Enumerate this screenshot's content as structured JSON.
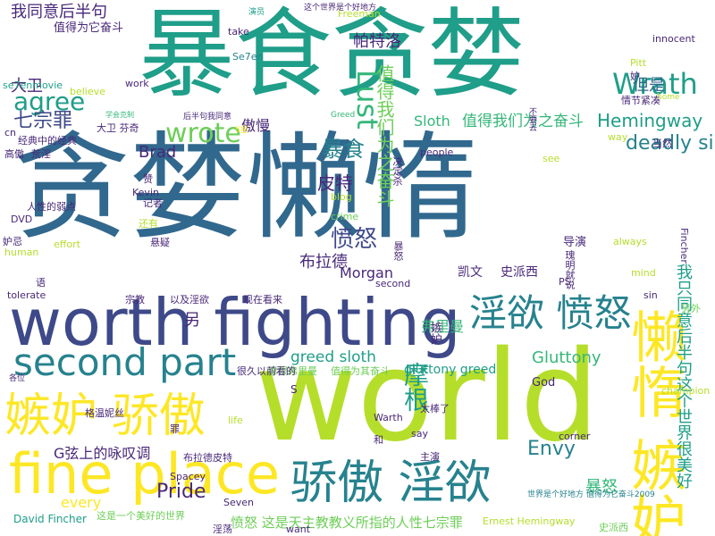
{
  "words": [
    {
      "text": "暴食贪婪"
    },
    {
      "text": "贪婪懒惰"
    },
    {
      "text": "world"
    },
    {
      "text": "worth fighting"
    },
    {
      "text": "fine place"
    },
    {
      "text": "second part"
    },
    {
      "text": "嫉妒 骄傲"
    },
    {
      "text": "骄傲 淫欲"
    },
    {
      "text": "淫欲 愤怒"
    },
    {
      "text": "懒惰 嫉妒"
    },
    {
      "text": "我只同意后半句这个世界很美好"
    },
    {
      "text": "agree"
    },
    {
      "text": "Wrath"
    },
    {
      "text": "Lust"
    },
    {
      "text": "wrote"
    },
    {
      "text": "我同意后半句"
    },
    {
      "text": "值得为它奋斗"
    },
    {
      "text": "帕特洛"
    },
    {
      "text": "七宗罪"
    },
    {
      "text": "大卫"
    },
    {
      "text": "傲慢"
    },
    {
      "text": "暴食"
    },
    {
      "text": "皮特"
    },
    {
      "text": "愤怒"
    },
    {
      "text": "布拉德"
    },
    {
      "text": "Brad"
    },
    {
      "text": "Morgan"
    },
    {
      "text": "Sloth"
    },
    {
      "text": "值得我们为之奋斗"
    },
    {
      "text": "Hemingway"
    },
    {
      "text": "deadly sin"
    },
    {
      "text": "但是"
    },
    {
      "text": "值得我们为之奋斗"
    },
    {
      "text": "greed sloth"
    },
    {
      "text": "弗里曼"
    },
    {
      "text": "Gluttony"
    },
    {
      "text": "gluttony greed"
    },
    {
      "text": "Envy"
    },
    {
      "text": "Pride"
    },
    {
      "text": "G弦上的咏叹调"
    },
    {
      "text": "every"
    },
    {
      "text": "摩根"
    },
    {
      "text": "格温妮丝"
    },
    {
      "text": "暴怒"
    },
    {
      "text": "愤怒 这是天主教教义所指的人性七宗罪"
    },
    {
      "text": "David Fincher"
    },
    {
      "text": "Ernest Hemingway"
    },
    {
      "text": "Seven"
    },
    {
      "text": "Spacey"
    },
    {
      "text": "摩根弗里曼"
    },
    {
      "text": "Kevin"
    },
    {
      "text": "Se7en"
    },
    {
      "text": "Freeman"
    },
    {
      "text": "Pitt"
    },
    {
      "text": "Greed"
    },
    {
      "text": "凯文"
    },
    {
      "text": "史派西"
    },
    {
      "text": "导演"
    },
    {
      "text": "PS"
    },
    {
      "text": "God"
    },
    {
      "text": "champion"
    },
    {
      "text": "corner"
    },
    {
      "text": "say"
    },
    {
      "text": "Warth"
    },
    {
      "text": "太棒了"
    },
    {
      "text": "主演"
    },
    {
      "text": "people"
    },
    {
      "text": "see"
    },
    {
      "text": "always"
    },
    {
      "text": "mind"
    },
    {
      "text": "sin"
    },
    {
      "text": "crime"
    },
    {
      "text": "blog"
    },
    {
      "text": "记者"
    },
    {
      "text": "还有"
    },
    {
      "text": "悬疑"
    },
    {
      "text": "effort"
    },
    {
      "text": "human"
    },
    {
      "text": "tolerate"
    },
    {
      "text": "DVD"
    },
    {
      "text": "妒忌"
    },
    {
      "text": "人性的弱点"
    },
    {
      "text": "经典中的经典"
    },
    {
      "text": "高傲"
    },
    {
      "text": "荒淫"
    },
    {
      "text": "大卫 芬奇"
    },
    {
      "text": "学会克制"
    },
    {
      "text": "5星"
    },
    {
      "text": "后半句我同意"
    },
    {
      "text": "believe"
    },
    {
      "text": "work"
    },
    {
      "text": "se7enmovie"
    },
    {
      "text": "cn"
    },
    {
      "text": "take"
    },
    {
      "text": "演员"
    },
    {
      "text": "这个世界是个好地方"
    },
    {
      "text": "innocent"
    },
    {
      "text": "情节紧凑"
    },
    {
      "text": "home"
    },
    {
      "text": "way"
    },
    {
      "text": "当然"
    },
    {
      "text": "Fincher"
    },
    {
      "text": "另外"
    },
    {
      "text": "现在看来"
    },
    {
      "text": "以及淫欲"
    },
    {
      "text": "宗教"
    },
    {
      "text": "second"
    },
    {
      "text": "很久以前看的"
    },
    {
      "text": "值得为其奋斗"
    },
    {
      "text": "各位"
    },
    {
      "text": "世界是个好地方 值得为它奋斗2009"
    },
    {
      "text": "life"
    },
    {
      "text": "和"
    },
    {
      "text": "罪"
    },
    {
      "text": "布拉德皮特"
    },
    {
      "text": "这是一个美好的世界"
    },
    {
      "text": "淫荡"
    },
    {
      "text": "want"
    },
    {
      "text": "史派西"
    },
    {
      "text": "决定杀"
    },
    {
      "text": "不要去"
    },
    {
      "text": "瑰明就说"
    },
    {
      "text": "妒"
    },
    {
      "text": "另"
    },
    {
      "text": "S"
    },
    {
      "text": "语"
    },
    {
      "text": "赞"
    },
    {
      "text": "嫉妒"
    },
    {
      "text": "暴怒"
    }
  ],
  "colors": {
    "yellow": "#fde725",
    "lime": "#b5de2b",
    "green": "#6ece58",
    "teal_green": "#35b779",
    "teal": "#1f9e89",
    "cyan": "#26828e",
    "blue": "#31688e",
    "indigo": "#3e4989",
    "purple": "#482878",
    "dark_purple": "#440154"
  }
}
